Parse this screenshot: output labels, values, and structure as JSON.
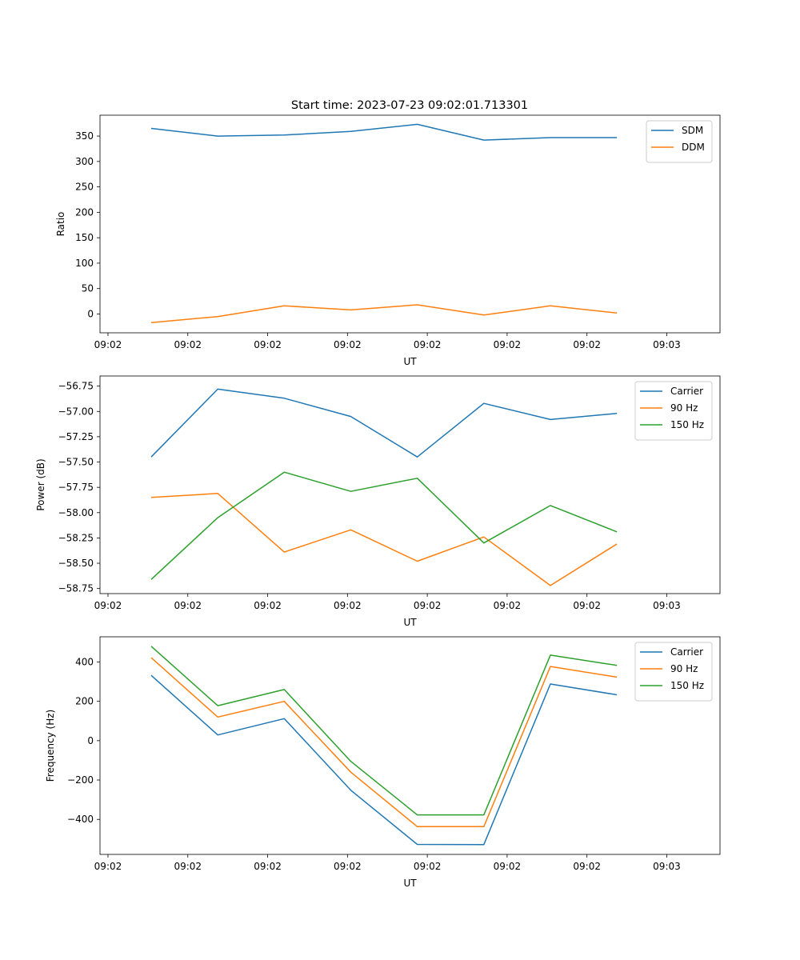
{
  "title": "Start time: 2023-07-23 09:02:01.713301",
  "chart_data": [
    {
      "type": "line",
      "xlabel": "UT",
      "ylabel": "Ratio",
      "x_tick_labels": [
        "09:02",
        "09:02",
        "09:02",
        "09:02",
        "09:02",
        "09:02",
        "09:02",
        "09:03"
      ],
      "xlim": [
        -0.12,
        9.2
      ],
      "x": [
        0.65,
        1.65,
        2.65,
        3.65,
        4.65,
        5.65,
        6.65,
        7.65
      ],
      "ylim": [
        -37,
        391
      ],
      "yticks": [
        0,
        50,
        100,
        150,
        200,
        250,
        300,
        350
      ],
      "legend": "top-right",
      "series": [
        {
          "name": "SDM",
          "color": "#1f77b4",
          "values": [
            365,
            350,
            352,
            359,
            373,
            342,
            347,
            347
          ]
        },
        {
          "name": "DDM",
          "color": "#ff7f0e",
          "values": [
            -17,
            -5,
            16,
            8,
            18,
            -2,
            16,
            2
          ]
        }
      ]
    },
    {
      "type": "line",
      "xlabel": "UT",
      "ylabel": "Power (dB)",
      "x_tick_labels": [
        "09:02",
        "09:02",
        "09:02",
        "09:02",
        "09:02",
        "09:02",
        "09:02",
        "09:03"
      ],
      "xlim": [
        -0.12,
        9.2
      ],
      "x": [
        0.65,
        1.65,
        2.65,
        3.65,
        4.65,
        5.65,
        6.65,
        7.65
      ],
      "ylim": [
        -58.8,
        -56.65
      ],
      "yticks": [
        -58.75,
        -58.5,
        -58.25,
        -58.0,
        -57.75,
        -57.5,
        -57.25,
        -57.0,
        -56.75
      ],
      "ytick_labels": [
        "−58.75",
        "−58.50",
        "−58.25",
        "−58.00",
        "−57.75",
        "−57.50",
        "−57.25",
        "−57.00",
        "−56.75"
      ],
      "legend": "top-right",
      "series": [
        {
          "name": "Carrier",
          "color": "#1f77b4",
          "values": [
            -57.45,
            -56.78,
            -56.87,
            -57.05,
            -57.45,
            -56.92,
            -57.08,
            -57.02
          ]
        },
        {
          "name": "90 Hz",
          "color": "#ff7f0e",
          "values": [
            -57.85,
            -57.81,
            -58.39,
            -58.17,
            -58.48,
            -58.24,
            -58.72,
            -58.31
          ]
        },
        {
          "name": "150 Hz",
          "color": "#2ca02c",
          "values": [
            -58.66,
            -58.05,
            -57.6,
            -57.79,
            -57.66,
            -58.3,
            -57.93,
            -58.19
          ]
        }
      ]
    },
    {
      "type": "line",
      "xlabel": "UT",
      "ylabel": "Frequency (Hz)",
      "x_tick_labels": [
        "09:02",
        "09:02",
        "09:02",
        "09:02",
        "09:02",
        "09:02",
        "09:02",
        "09:03"
      ],
      "xlim": [
        -0.12,
        9.2
      ],
      "x": [
        0.65,
        1.65,
        2.65,
        3.65,
        4.65,
        5.65,
        6.65,
        7.65
      ],
      "ylim": [
        -578,
        528
      ],
      "yticks": [
        -400,
        -200,
        0,
        200,
        400
      ],
      "ytick_labels": [
        "−400",
        "−200",
        "0",
        "200",
        "400"
      ],
      "legend": "top-right",
      "series": [
        {
          "name": "Carrier",
          "color": "#1f77b4",
          "values": [
            332,
            29,
            112,
            -252,
            -527,
            -528,
            288,
            233
          ]
        },
        {
          "name": "90 Hz",
          "color": "#ff7f0e",
          "values": [
            422,
            120,
            200,
            -160,
            -437,
            -437,
            377,
            323
          ]
        },
        {
          "name": "150 Hz",
          "color": "#2ca02c",
          "values": [
            480,
            178,
            260,
            -105,
            -377,
            -377,
            435,
            383
          ]
        }
      ]
    }
  ]
}
